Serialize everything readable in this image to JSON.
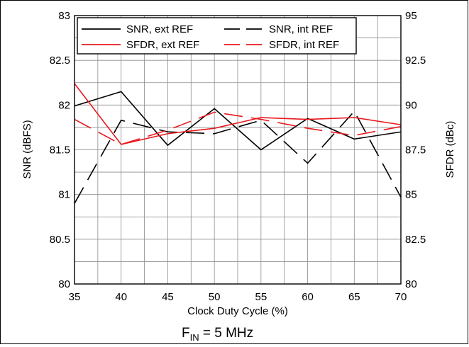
{
  "chart_data": {
    "type": "line",
    "xlabel": "Clock Duty Cycle (%)",
    "ylabel_left": "SNR (dBFS)",
    "ylabel_right": "SFDR (dBc)",
    "x": [
      35,
      40,
      45,
      50,
      55,
      60,
      65,
      70
    ],
    "x_ticks": [
      "35",
      "40",
      "45",
      "50",
      "55",
      "60",
      "65",
      "70"
    ],
    "xlim": [
      35,
      70
    ],
    "ylim_left": [
      80,
      83
    ],
    "ylim_right": [
      80,
      95
    ],
    "y_ticks_left": [
      "80",
      "80.5",
      "81",
      "81.5",
      "82",
      "82.5",
      "83"
    ],
    "y_ticks_right": [
      "80",
      "82.5",
      "85",
      "87.5",
      "90",
      "92.5",
      "95"
    ],
    "grid": true,
    "legend_placement": "top",
    "series": [
      {
        "name": "SNR, ext REF",
        "axis": "left",
        "color": "#000000",
        "dash": "solid",
        "values": [
          81.99,
          82.15,
          81.55,
          81.96,
          81.5,
          81.85,
          81.62,
          81.7
        ]
      },
      {
        "name": "SNR, int REF",
        "axis": "left",
        "color": "#000000",
        "dash": "dashed",
        "values": [
          80.9,
          81.83,
          81.7,
          81.68,
          81.83,
          81.35,
          81.93,
          80.97
        ]
      },
      {
        "name": "SFDR, ext REF",
        "axis": "right",
        "color": "#e8191f",
        "dash": "solid",
        "values": [
          91.2,
          87.8,
          88.4,
          88.7,
          89.3,
          89.2,
          89.3,
          88.9
        ]
      },
      {
        "name": "SFDR, int REF",
        "axis": "right",
        "color": "#e8191f",
        "dash": "dashed",
        "values": [
          89.2,
          87.8,
          88.6,
          89.6,
          89.2,
          88.7,
          88.3,
          88.8
        ]
      }
    ]
  },
  "caption": {
    "main": "F",
    "sub": "IN",
    "rest": " = 5 MHz"
  }
}
